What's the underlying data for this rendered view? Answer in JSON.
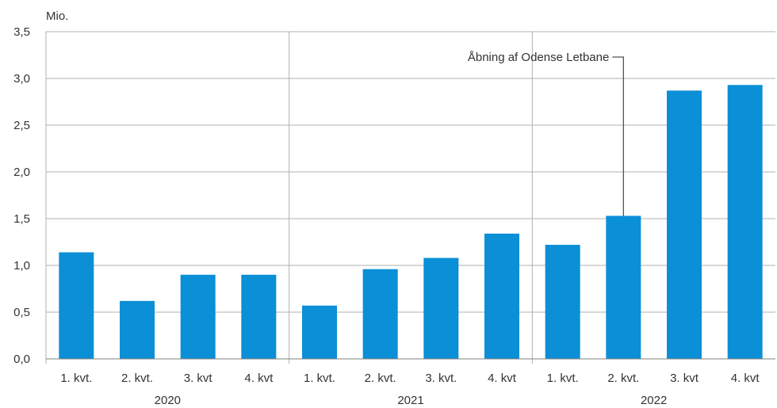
{
  "chart_data": {
    "type": "bar",
    "unit_label": "Mio.",
    "groups": [
      {
        "label": "2020",
        "categories": [
          "1. kvt.",
          "2. kvt.",
          "3. kvt",
          "4. kvt"
        ]
      },
      {
        "label": "2021",
        "categories": [
          "1. kvt.",
          "2. kvt.",
          "3. kvt.",
          "4. kvt"
        ]
      },
      {
        "label": "2022",
        "categories": [
          "1. kvt.",
          "2. kvt.",
          "3. kvt",
          "4. kvt"
        ]
      }
    ],
    "values": [
      1.14,
      0.62,
      0.9,
      0.9,
      0.57,
      0.96,
      1.08,
      1.34,
      1.22,
      1.53,
      2.87,
      2.93
    ],
    "ylim": [
      0,
      3.5
    ],
    "yticks": [
      "0,0",
      "0,5",
      "1,0",
      "1,5",
      "2,0",
      "2,5",
      "3,0",
      "3,5"
    ],
    "grid": true,
    "bar_color": "#0b8fd6",
    "grid_color": "#b0b0b0",
    "annotation": {
      "text": "Åbning af Odense Letbane",
      "target_index": 9
    }
  }
}
